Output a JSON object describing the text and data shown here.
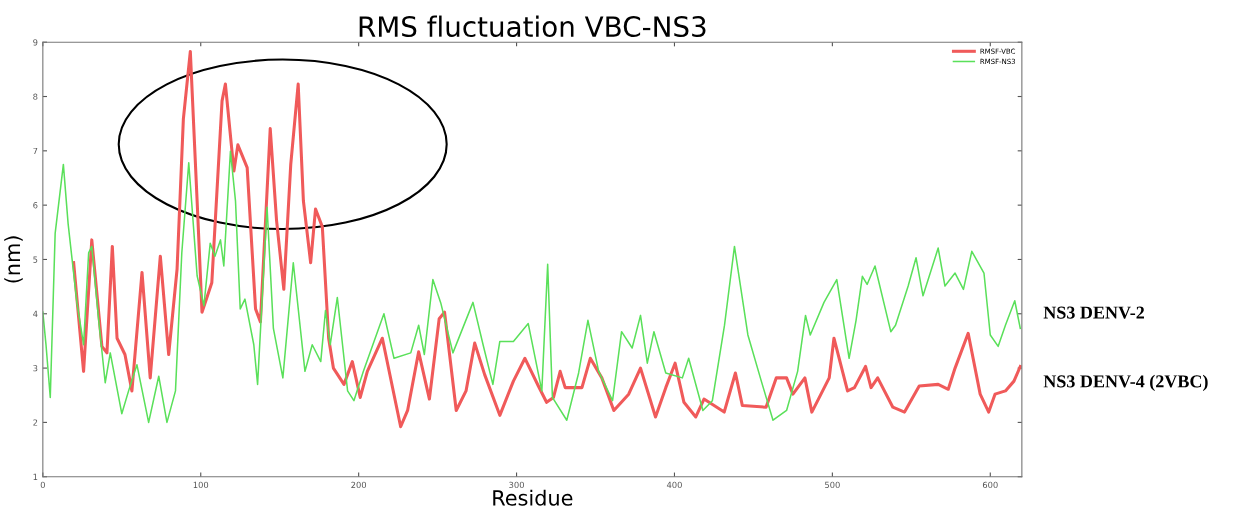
{
  "chart_data": {
    "type": "line",
    "title": "RMS fluctuation VBC-NS3",
    "xlabel": "Residue",
    "ylabel": "(nm)",
    "xlim": [
      0,
      620
    ],
    "xticks": [
      0,
      100,
      200,
      300,
      400,
      500,
      600
    ],
    "ylim": [
      1,
      9
    ],
    "yticks": [
      1,
      2,
      3,
      4,
      5,
      6,
      7,
      8,
      9
    ],
    "grid": false,
    "legend": "top right",
    "marker": "none",
    "line_style": "solid",
    "annotations": [
      "NS3 DENV-2",
      "NS3 DENV-4 (2VBC)"
    ],
    "series": [
      {
        "name": "RMSF-VBC",
        "color": "#f05a5a",
        "x": [
          19.5,
          25.8,
          31,
          37.4,
          40.6,
          44,
          47,
          52,
          56.4,
          62.8,
          68,
          74.4,
          79.7,
          85,
          89,
          93.4,
          97.7,
          100.8,
          107,
          113.5,
          115.6,
          121,
          123.5,
          129.4,
          134.7,
          137.8,
          144,
          148,
          152.6,
          157,
          161.7,
          165,
          169.6,
          172.7,
          177,
          181,
          184,
          190.7,
          196,
          201,
          205.5,
          215,
          226.6,
          231,
          238,
          244.8,
          251,
          254.4,
          261.8,
          268,
          273.5,
          279.8,
          289.4,
          298,
          305.3,
          313.8,
          319,
          323.4,
          327.6,
          330.8,
          341.4,
          346.7,
          354,
          361.6,
          371,
          378.5,
          388,
          394.5,
          400.4,
          406,
          413.5,
          418.7,
          431.5,
          438.6,
          443,
          458,
          464.5,
          471,
          475,
          482.6,
          487,
          498,
          501,
          509.6,
          514,
          521,
          524.5,
          528.7,
          538.3,
          545.7,
          555,
          567,
          573.4,
          577.7,
          586,
          593.6,
          599,
          603,
          609.6,
          615,
          619
        ],
        "values": [
          4.94,
          2.94,
          5.36,
          3.4,
          3.28,
          5.24,
          3.55,
          3.25,
          2.58,
          4.76,
          2.82,
          5.06,
          3.25,
          4.82,
          7.59,
          8.83,
          6.08,
          4.03,
          4.57,
          7.92,
          8.23,
          6.63,
          7.11,
          6.69,
          4.09,
          3.85,
          7.41,
          5.72,
          4.45,
          6.75,
          8.23,
          6.08,
          4.94,
          5.93,
          5.6,
          3.55,
          3.0,
          2.7,
          3.12,
          2.46,
          2.94,
          3.55,
          1.92,
          2.22,
          3.3,
          2.43,
          3.91,
          4.03,
          2.22,
          2.58,
          3.46,
          2.88,
          2.13,
          2.76,
          3.18,
          2.67,
          2.37,
          2.46,
          2.94,
          2.64,
          2.64,
          3.18,
          2.82,
          2.22,
          2.52,
          3.0,
          2.1,
          2.64,
          3.09,
          2.37,
          2.1,
          2.43,
          2.19,
          2.91,
          2.31,
          2.28,
          2.82,
          2.82,
          2.52,
          2.82,
          2.19,
          2.82,
          3.55,
          2.58,
          2.64,
          3.03,
          2.64,
          2.82,
          2.28,
          2.19,
          2.67,
          2.7,
          2.61,
          3.0,
          3.64,
          2.52,
          2.19,
          2.52,
          2.58,
          2.76,
          3.03
        ]
      },
      {
        "name": "RMSF-NS3",
        "color": "#5ae05a",
        "x": [
          0,
          2,
          4.7,
          7.8,
          13,
          16,
          21.6,
          25.8,
          29,
          31,
          35.3,
          39.5,
          42.7,
          50,
          54.3,
          59.6,
          67,
          73.4,
          78.6,
          84,
          88,
          92.4,
          97.7,
          102,
          106,
          109,
          112.5,
          114.6,
          118.8,
          122,
          125,
          128,
          133.6,
          136,
          142,
          146,
          152,
          158.6,
          166,
          170.6,
          176,
          179,
          182,
          186.5,
          193,
          197,
          203,
          216,
          222.4,
          233,
          238,
          241.6,
          247,
          252,
          259.7,
          272.4,
          278.8,
          285,
          289.4,
          298,
          307.4,
          316,
          319.7,
          322.7,
          331.8,
          339.3,
          345.2,
          352,
          360.8,
          366.5,
          373.2,
          378.5,
          382.8,
          387,
          394.5,
          405,
          409,
          418,
          424,
          431.7,
          438,
          446.5,
          455,
          462.4,
          471,
          478,
          483,
          486,
          494.7,
          502.8,
          510.6,
          515,
          519,
          522,
          527,
          537,
          540,
          548,
          553,
          557.4,
          567,
          571.3,
          577.7,
          583,
          588.3,
          596,
          600,
          605,
          609.6,
          615.5,
          619
        ],
        "values": [
          4.03,
          3.43,
          2.46,
          5.48,
          6.75,
          5.66,
          4.2,
          3.43,
          5.12,
          5.24,
          3.9,
          2.73,
          3.28,
          2.16,
          2.58,
          3.06,
          2.0,
          2.85,
          2.0,
          2.58,
          5.12,
          6.78,
          4.7,
          4.15,
          5.3,
          5.06,
          5.36,
          4.88,
          6.99,
          6.08,
          4.09,
          4.27,
          3.43,
          2.7,
          5.96,
          3.73,
          2.82,
          4.94,
          2.94,
          3.43,
          3.12,
          4.06,
          3.43,
          4.3,
          2.58,
          2.4,
          2.94,
          4.0,
          3.18,
          3.28,
          3.79,
          3.25,
          4.63,
          4.2,
          3.28,
          4.21,
          3.43,
          2.7,
          3.49,
          3.49,
          3.82,
          2.58,
          4.91,
          2.46,
          2.04,
          2.91,
          3.88,
          2.94,
          2.4,
          3.67,
          3.37,
          3.97,
          3.09,
          3.67,
          2.91,
          2.82,
          3.18,
          2.22,
          2.4,
          3.79,
          5.24,
          3.61,
          2.76,
          2.04,
          2.22,
          2.94,
          3.97,
          3.61,
          4.21,
          4.63,
          3.18,
          3.88,
          4.69,
          4.54,
          4.88,
          3.67,
          3.79,
          4.51,
          5.03,
          4.33,
          5.21,
          4.51,
          4.75,
          4.45,
          5.15,
          4.75,
          3.61,
          3.4,
          3.79,
          4.24,
          3.73
        ]
      }
    ]
  }
}
